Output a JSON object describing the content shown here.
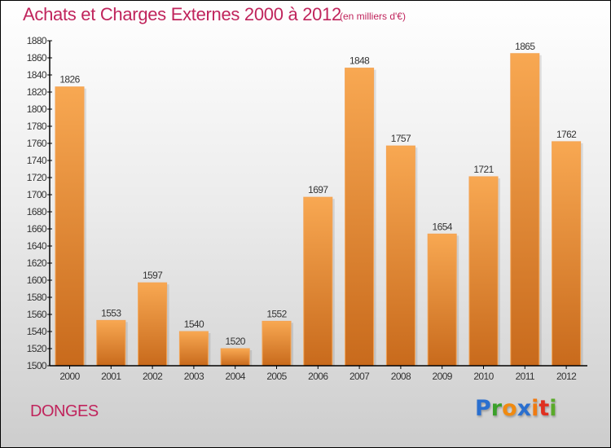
{
  "header": {
    "title": "Achats et Charges Externes 2000 à 2012",
    "subtitle": "(en milliers d'€)"
  },
  "footer": {
    "commune": "DONGES",
    "logo": {
      "letters": [
        {
          "char": "P",
          "color": "#2a6fcf"
        },
        {
          "char": "r",
          "color": "#3aa02a"
        },
        {
          "char": "o",
          "color": "#f08a10"
        },
        {
          "char": "x",
          "color": "#2a6fcf"
        },
        {
          "char": "i",
          "color": "#f07a10"
        },
        {
          "char": "t",
          "color": "#e03020"
        },
        {
          "char": "i",
          "color": "#5aaa2a"
        }
      ]
    }
  },
  "colors": {
    "title": "#c0245c",
    "bar_top": "#f8a852",
    "bar_bottom": "#c86a1c",
    "axis": "#000000"
  },
  "chart_data": {
    "type": "bar",
    "title": "Achats et Charges Externes 2000 à 2012",
    "subtitle": "(en milliers d'€)",
    "xlabel": "",
    "ylabel": "",
    "categories": [
      "2000",
      "2001",
      "2002",
      "2003",
      "2004",
      "2005",
      "2006",
      "2007",
      "2008",
      "2009",
      "2010",
      "2011",
      "2012"
    ],
    "values": [
      1826,
      1553,
      1597,
      1540,
      1520,
      1552,
      1697,
      1848,
      1757,
      1654,
      1721,
      1865,
      1762
    ],
    "ylim": [
      1500,
      1880
    ],
    "yticks": [
      1500,
      1520,
      1540,
      1560,
      1580,
      1600,
      1620,
      1640,
      1660,
      1680,
      1700,
      1720,
      1740,
      1760,
      1780,
      1800,
      1820,
      1840,
      1860,
      1880
    ],
    "grid": false,
    "legend": "none",
    "data_labels": true
  }
}
